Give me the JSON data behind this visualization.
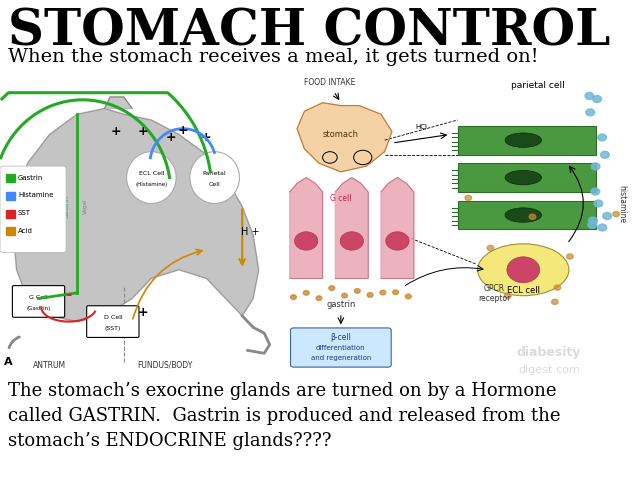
{
  "title": "STOMACH CONTROL",
  "subtitle": "When the stomach receives a meal, it gets turned on!",
  "body_text": "The stomach’s exocrine glands are turned on by a Hormone\ncalled GASTRIN.  Gastrin is produced and released from the\nstomach’s ENDOCRINE glands????",
  "bg_color": "#ffffff",
  "title_fontsize": 36,
  "subtitle_fontsize": 14,
  "body_fontsize": 13,
  "title_color": "#000000",
  "subtitle_color": "#000000",
  "body_color": "#000000",
  "stomach_gray": "#b0b0b0",
  "stomach_orange": "#f0c080",
  "green_cell": "#4a9940",
  "pink_cell": "#e8a0a8",
  "yellow_ecl": "#f5e87a",
  "blue_dots": "#70b8d8"
}
